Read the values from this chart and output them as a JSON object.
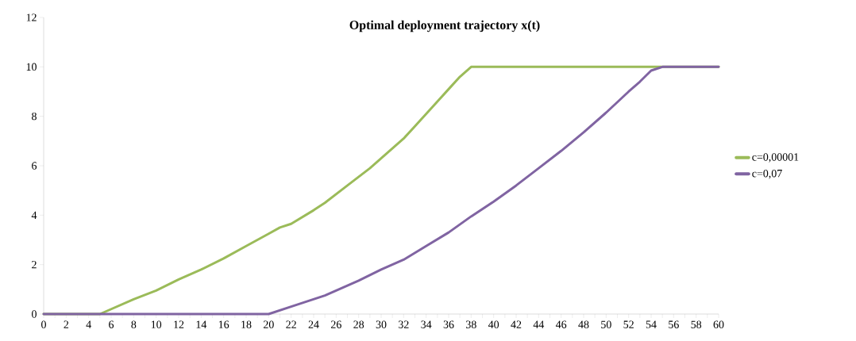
{
  "chart_data": {
    "type": "line",
    "title": "Optimal deployment trajectory  x(t)",
    "xlim": [
      0,
      60
    ],
    "ylim": [
      0,
      12
    ],
    "xticks": [
      0,
      {
        "value": 1,
        "label": null
      },
      2,
      {
        "value": 3,
        "label": null
      },
      4,
      {
        "value": 5,
        "label": null
      },
      6,
      {
        "value": 7,
        "label": null
      },
      8,
      {
        "value": 9,
        "label": null
      },
      10,
      {
        "value": 11,
        "label": null
      },
      12,
      {
        "value": 13,
        "label": null
      },
      14,
      {
        "value": 15,
        "label": null
      },
      16,
      {
        "value": 17,
        "label": null
      },
      18,
      {
        "value": 19,
        "label": null
      },
      20,
      {
        "value": 21,
        "label": null
      },
      22,
      {
        "value": 23,
        "label": null
      },
      24,
      {
        "value": 25,
        "label": null
      },
      26,
      {
        "value": 27,
        "label": null
      },
      28,
      {
        "value": 29,
        "label": null
      },
      30,
      {
        "value": 31,
        "label": null
      },
      32,
      {
        "value": 33,
        "label": null
      },
      34,
      {
        "value": 35,
        "label": null
      },
      36,
      {
        "value": 37,
        "label": null
      },
      38,
      {
        "value": 39,
        "label": null
      },
      40,
      {
        "value": 41,
        "label": null
      },
      42,
      {
        "value": 43,
        "label": null
      },
      44,
      {
        "value": 45,
        "label": null
      },
      46,
      {
        "value": 47,
        "label": null
      },
      48,
      {
        "value": 49,
        "label": null
      },
      50,
      {
        "value": 51,
        "label": null
      },
      52,
      {
        "value": 53,
        "label": null
      },
      54,
      {
        "value": 55,
        "label": null
      },
      56,
      {
        "value": 57,
        "label": null
      },
      58,
      {
        "value": 59,
        "label": null
      },
      60
    ],
    "yticks": [
      0,
      2,
      4,
      6,
      8,
      10,
      12
    ],
    "grid": false,
    "legend": "right",
    "marker": "none",
    "line_style": "solid",
    "series": [
      {
        "name": "c=0,00001",
        "color": "#9bbb59",
        "x": [
          0,
          5,
          8,
          10,
          12,
          14,
          16,
          18,
          20,
          21,
          22,
          24,
          25,
          27,
          29,
          30,
          32,
          33,
          35,
          36,
          37,
          38,
          60
        ],
        "values": [
          0,
          0,
          0.6,
          0.95,
          1.4,
          1.8,
          2.25,
          2.75,
          3.25,
          3.5,
          3.65,
          4.2,
          4.5,
          5.2,
          5.9,
          6.3,
          7.1,
          7.6,
          8.6,
          9.1,
          9.6,
          10,
          10
        ]
      },
      {
        "name": "c=0,07",
        "color": "#8064a2",
        "x": [
          0,
          20,
          22,
          25,
          28,
          30,
          32,
          34,
          36,
          38,
          40,
          42,
          44,
          46,
          48,
          50,
          52,
          53,
          54,
          55,
          60
        ],
        "values": [
          0,
          0,
          0.3,
          0.75,
          1.35,
          1.8,
          2.2,
          2.75,
          3.3,
          3.95,
          4.55,
          5.2,
          5.9,
          6.6,
          7.35,
          8.15,
          9.0,
          9.4,
          9.85,
          10,
          10
        ]
      }
    ]
  }
}
